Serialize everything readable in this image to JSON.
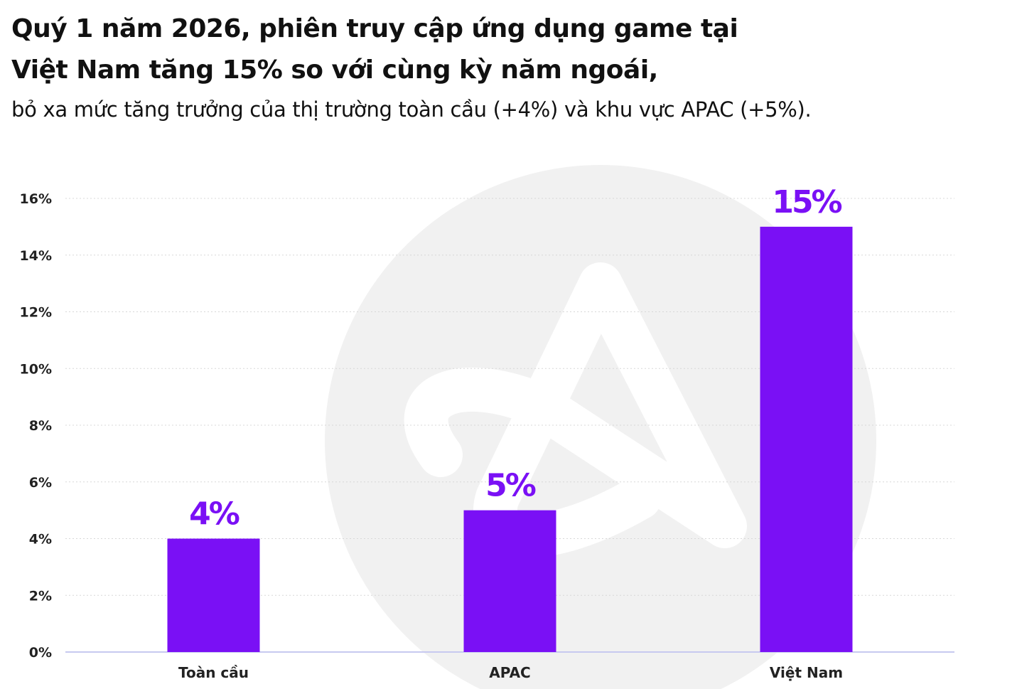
{
  "header": {
    "title_line1": "Quý 1 năm 2026, phiên truy cập ứng dụng game tại",
    "title_line2": "Việt Nam tăng 15% so với cùng kỳ năm ngoái,",
    "subtitle": "bỏ xa mức tăng trưởng của thị trường toàn cầu (+4%) và khu vực APAC (+5%)."
  },
  "colors": {
    "bar": "#7a10f5",
    "label": "#7a10f5",
    "grid": "#d8d8d8",
    "axis": "#c7c9f0",
    "watermark": "#f1f1f1"
  },
  "watermark_icon": "logo-watermark-icon",
  "chart_data": {
    "type": "bar",
    "categories": [
      "Toàn cầu",
      "APAC",
      "Việt Nam"
    ],
    "values": [
      4,
      5,
      15
    ],
    "data_labels": [
      "4%",
      "5%",
      "15%"
    ],
    "title": "",
    "xlabel": "",
    "ylabel": "",
    "ylim": [
      0,
      16
    ],
    "yticks": [
      0,
      2,
      4,
      6,
      8,
      10,
      12,
      14,
      16
    ],
    "ytick_labels": [
      "0%",
      "2%",
      "4%",
      "6%",
      "8%",
      "10%",
      "12%",
      "14%",
      "16%"
    ],
    "grid": true,
    "legend": "none"
  }
}
